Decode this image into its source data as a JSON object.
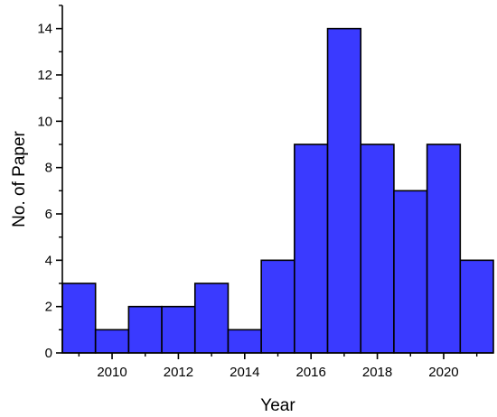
{
  "chart_data": {
    "type": "bar",
    "title": "",
    "xlabel": "Year",
    "ylabel": "No. of Paper",
    "years": [
      2009,
      2010,
      2011,
      2012,
      2013,
      2014,
      2015,
      2016,
      2017,
      2018,
      2019,
      2020,
      2021
    ],
    "values": [
      3,
      1,
      2,
      2,
      3,
      1,
      4,
      9,
      14,
      9,
      7,
      9,
      4
    ],
    "xlim": [
      2008.5,
      2021.5
    ],
    "ylim": [
      0,
      15
    ],
    "x_ticks": [
      2010,
      2012,
      2014,
      2016,
      2018,
      2020
    ],
    "y_ticks": [
      0,
      2,
      4,
      6,
      8,
      10,
      12,
      14
    ],
    "bar_color": "#3a3aff",
    "edge_color": "#000000",
    "grid": false,
    "legend": "none"
  }
}
